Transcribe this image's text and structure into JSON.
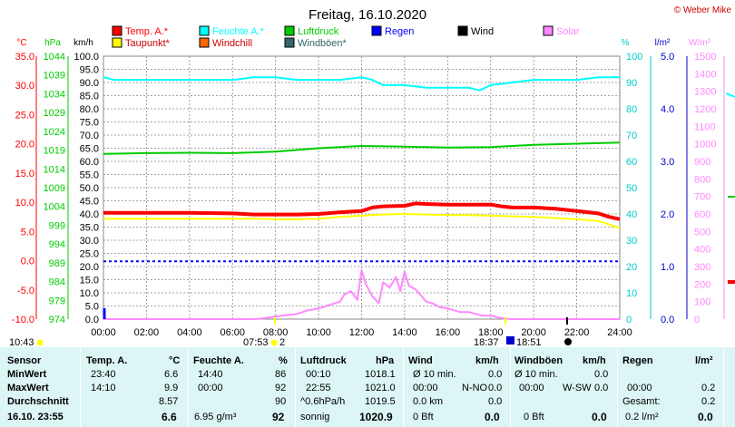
{
  "chart_data": {
    "type": "line",
    "title": "Freitag, 16.10.2020",
    "credit": "© Weber Mike",
    "legend": [
      {
        "name": "Temp. A.*",
        "color": "#ff0000"
      },
      {
        "name": "Feuchte A.*",
        "color": "#00ffff"
      },
      {
        "name": "Luftdruck",
        "color": "#00cc00"
      },
      {
        "name": "Regen",
        "color": "#0000ff"
      },
      {
        "name": "Wind",
        "color": "#000000"
      },
      {
        "name": "Solar",
        "color": "#ff88ff"
      },
      {
        "name": "Taupunkt*",
        "color": "#ffff00"
      },
      {
        "name": "Windchill",
        "color": "#ff6600"
      },
      {
        "name": "Windböen*",
        "color": "#336666"
      }
    ],
    "axes": {
      "temp": {
        "unit": "°C",
        "min": -10,
        "max": 35,
        "ticks": [
          "35.0",
          "30.0",
          "25.0",
          "20.0",
          "15.0",
          "10.0",
          "5.0",
          "0.0",
          "-5.0",
          "-10.0"
        ],
        "color": "#ff0000"
      },
      "pressure": {
        "unit": "hPa",
        "min": 974,
        "max": 1044,
        "ticks": [
          "1044",
          "1039",
          "1034",
          "1029",
          "1024",
          "1019",
          "1014",
          "1009",
          "1004",
          "999",
          "994",
          "989",
          "984",
          "979",
          "974"
        ],
        "color": "#00cc00"
      },
      "wind": {
        "unit": "km/h",
        "min": 0,
        "max": 100,
        "ticks": [
          "100.0",
          "95.0",
          "90.0",
          "85.0",
          "80.0",
          "75.0",
          "70.0",
          "65.0",
          "60.0",
          "55.0",
          "50.0",
          "45.0",
          "40.0",
          "35.0",
          "30.0",
          "25.0",
          "20.0",
          "15.0",
          "10.0",
          "5.0",
          "0.0"
        ],
        "color": "#000000"
      },
      "humidity": {
        "unit": "%",
        "min": 0,
        "max": 100,
        "ticks": [
          "100",
          "90",
          "80",
          "70",
          "60",
          "50",
          "40",
          "30",
          "20",
          "10",
          "0"
        ],
        "color": "#00cccc"
      },
      "rain": {
        "unit": "l/m²",
        "min": 0,
        "max": 5,
        "ticks": [
          "5.0",
          "4.0",
          "3.0",
          "2.0",
          "1.0",
          "0.0"
        ],
        "color": "#0000cc"
      },
      "solar": {
        "unit": "W/m²",
        "min": 0,
        "max": 1500,
        "ticks": [
          "1500",
          "1400",
          "1300",
          "1200",
          "1100",
          "1000",
          "900",
          "800",
          "700",
          "600",
          "500",
          "400",
          "300",
          "200",
          "100",
          "0"
        ],
        "color": "#ff88ff"
      },
      "x": {
        "min": 0,
        "max": 24,
        "ticks": [
          "00:00",
          "02:00",
          "04:00",
          "06:00",
          "08:00",
          "10:00",
          "12:00",
          "14:00",
          "16:00",
          "18:00",
          "20:00",
          "22:00",
          "24:00"
        ]
      }
    },
    "series": [
      {
        "name": "Temp. A.*",
        "axis": "temp",
        "color": "#ff0000",
        "width": 4,
        "x": [
          0,
          2,
          4,
          6,
          7,
          8,
          9,
          10,
          11,
          12,
          12.5,
          13,
          14,
          14.5,
          15,
          16,
          17,
          18,
          18.5,
          19,
          20,
          21,
          22,
          23,
          23.5,
          24
        ],
        "y": [
          8.2,
          8.2,
          8.2,
          8.1,
          7.9,
          7.9,
          7.9,
          8.0,
          8.3,
          8.5,
          9.1,
          9.3,
          9.4,
          9.8,
          9.7,
          9.6,
          9.6,
          9.6,
          9.3,
          9.1,
          9.1,
          8.9,
          8.5,
          8.1,
          7.5,
          7.1
        ]
      },
      {
        "name": "Taupunkt*",
        "axis": "temp",
        "color": "#ffff00",
        "width": 2,
        "x": [
          0,
          2,
          4,
          6,
          7,
          8,
          9,
          10,
          11,
          12,
          13,
          14,
          15,
          16,
          17,
          18,
          19,
          20,
          21,
          22,
          23,
          23.5,
          24
        ],
        "y": [
          7.2,
          7.2,
          7.2,
          7.2,
          7.2,
          7.1,
          7.1,
          7.2,
          7.5,
          7.7,
          7.9,
          8.0,
          7.9,
          7.8,
          7.8,
          7.7,
          7.6,
          7.5,
          7.3,
          7.1,
          6.8,
          6.2,
          5.6
        ]
      },
      {
        "name": "Feuchte A.*",
        "axis": "humidity",
        "color": "#00ffff",
        "width": 2,
        "x": [
          0,
          0.5,
          1,
          2,
          4,
          6,
          7,
          8,
          9,
          10,
          11,
          12,
          12.5,
          13,
          14,
          15,
          16,
          17,
          17.5,
          18,
          19,
          20,
          21,
          22,
          23,
          24
        ],
        "y": [
          92,
          91,
          91,
          91,
          91,
          91,
          92,
          92,
          91,
          91,
          91,
          92,
          91,
          89,
          89,
          88,
          88,
          88,
          87,
          89,
          90,
          91,
          91,
          91,
          92,
          92
        ]
      },
      {
        "name": "Luftdruck",
        "axis": "pressure",
        "color": "#00cc00",
        "width": 2,
        "x": [
          0,
          2,
          4,
          6,
          8,
          10,
          12,
          14,
          16,
          18,
          20,
          22,
          24
        ],
        "y": [
          1018.0,
          1018.2,
          1018.3,
          1018.2,
          1018.6,
          1019.5,
          1020.1,
          1019.9,
          1019.7,
          1019.8,
          1020.4,
          1020.7,
          1021.0
        ]
      },
      {
        "name": "Solar",
        "axis": "solar",
        "color": "#ff88ff",
        "width": 2,
        "x": [
          0,
          7,
          7.5,
          8,
          9,
          9.5,
          10,
          10.5,
          11,
          11.2,
          11.5,
          11.8,
          12,
          12.2,
          12.5,
          12.8,
          13,
          13.3,
          13.6,
          13.8,
          14,
          14.2,
          14.5,
          14.8,
          15,
          15.3,
          15.6,
          16,
          16.3,
          16.6,
          17,
          17.3,
          17.6,
          18,
          18.5,
          19,
          24
        ],
        "y": [
          0,
          0,
          5,
          15,
          30,
          50,
          60,
          80,
          100,
          140,
          160,
          110,
          280,
          200,
          130,
          90,
          210,
          180,
          240,
          160,
          270,
          190,
          170,
          130,
          100,
          90,
          70,
          60,
          50,
          40,
          40,
          30,
          20,
          20,
          5,
          0,
          0
        ]
      },
      {
        "name": "Regen",
        "axis": "rain",
        "color": "#0000ff",
        "width": 2,
        "x": [
          0,
          24
        ],
        "y": [
          1.1,
          1.1
        ],
        "dashed": true
      }
    ],
    "markers": {
      "left_time": "10:43",
      "sunrise": "07:53",
      "moon_count": "2",
      "sunset": "18:37",
      "moonset": "18:51"
    }
  },
  "stats": {
    "headers": {
      "sensor": "Sensor",
      "temp": "Temp. A.",
      "temp_unit": "°C",
      "hum": "Feuchte A.",
      "hum_unit": "%",
      "press": "Luftdruck",
      "press_unit": "hPa",
      "wind": "Wind",
      "wind_unit": "km/h",
      "gust": "Windböen",
      "gust_unit": "km/h",
      "rain": "Regen",
      "rain_unit": "l/m²"
    },
    "rows": {
      "min": {
        "label": "MinWert",
        "temp_time": "23:40",
        "temp": "6.6",
        "hum_time": "14:40",
        "hum": "86",
        "press_time": "00:10",
        "press": "1018.1",
        "wind_label": "Ø 10 min.",
        "wind": "0.0",
        "gust_label": "Ø 10 min.",
        "gust": "0.0",
        "rain_label": "",
        "rain": ""
      },
      "max": {
        "label": "MaxWert",
        "temp_time": "14:10",
        "temp": "9.9",
        "hum_time": "00:00",
        "hum": "92",
        "press_time": "22:55",
        "press": "1021.0",
        "wind_time": "00:00",
        "wind_dir": "N-NO",
        "wind": "0.0",
        "gust_time": "00:00",
        "gust_dir": "W-SW",
        "gust": "0.0",
        "rain_label": "00:00",
        "rain": "0.2"
      },
      "avg": {
        "label": "Durchschnitt",
        "temp": "8.57",
        "hum": "90",
        "press_label": "^0.6hPa/h",
        "press": "1019.5",
        "wind_label": "0.0 km",
        "wind": "0.0",
        "rain_label": "Gesamt:",
        "rain": "0.2"
      },
      "cur": {
        "label": "16.10. 23:55",
        "temp": "6.6",
        "hum_label": "6.95 g/m³",
        "hum": "92",
        "press_label": "sonnig",
        "press": "1020.9",
        "wind_label": "0 Bft",
        "wind": "0.0",
        "gust_label": "0 Bft",
        "gust": "0.0",
        "rain_label": "0.2 l/m²",
        "rain": "0.0"
      }
    }
  }
}
